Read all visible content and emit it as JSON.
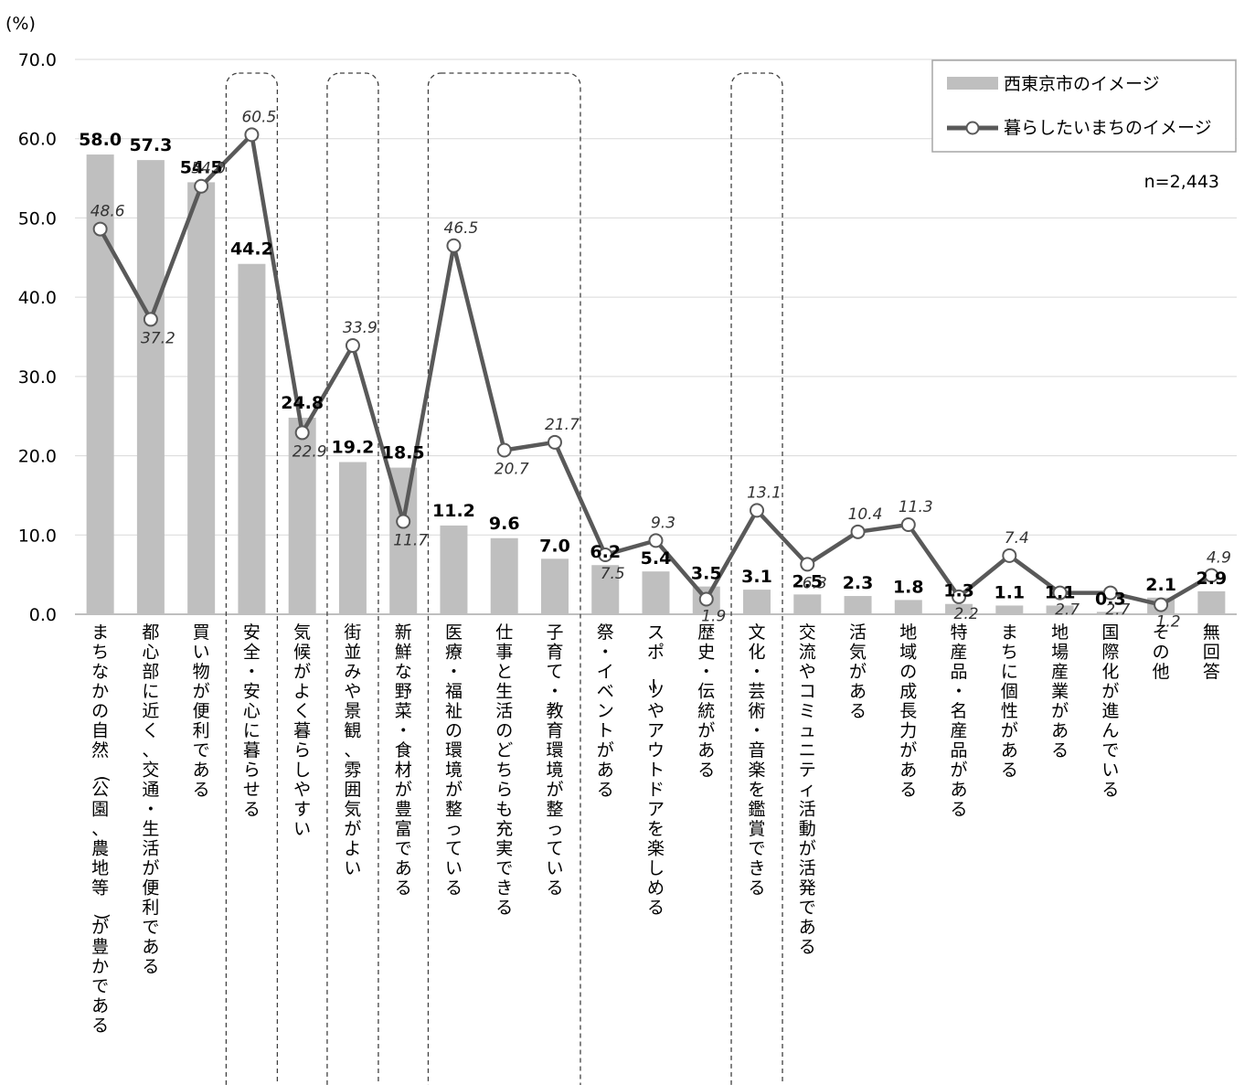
{
  "chart_data": {
    "type": "bar",
    "unit_label": "(%)",
    "n_label": "n=2,443",
    "ylim": [
      0,
      70
    ],
    "yticks": [
      "0.0",
      "10.0",
      "20.0",
      "30.0",
      "40.0",
      "50.0",
      "60.0",
      "70.0"
    ],
    "grid": true,
    "legend_position": "top-right",
    "categories": [
      "まちなかの自然(公園、農地等)が豊かである",
      "都心部に近く、交通・生活が便利である",
      "買い物が便利である",
      "安全・安心に暮らせる",
      "気候がよく暮らしやすい",
      "街並みや景観、雰囲気がよい",
      "新鮮な野菜・食材が豊富である",
      "医療・福祉の環境が整っている",
      "仕事と生活のどちらも充実できる",
      "子育て・教育環境が整っている",
      "祭・イベントがある",
      "スポーツやアウトドアを楽しめる",
      "歴史・伝統がある",
      "文化・芸術・音楽を鑑賞できる",
      "交流やコミュニティ活動が活発である",
      "活気がある",
      "地域の成長力がある",
      "特産品・名産品がある",
      "まちに個性がある",
      "地場産業がある",
      "国際化が進んでいる",
      "その他",
      "無回答"
    ],
    "series": [
      {
        "name": "西東京市のイメージ",
        "kind": "bar",
        "color": "#bfbfbf",
        "values": [
          58.0,
          57.3,
          54.5,
          44.2,
          24.8,
          19.2,
          18.5,
          11.2,
          9.6,
          7.0,
          6.2,
          5.4,
          3.5,
          3.1,
          2.5,
          2.3,
          1.8,
          1.3,
          1.1,
          1.1,
          0.3,
          2.1,
          2.9
        ],
        "labels": [
          "58.0",
          "57.3",
          "54.5",
          "44.2",
          "24.8",
          "19.2",
          "18.5",
          "11.2",
          "9.6",
          "7.0",
          "6.2",
          "5.4",
          "3.5",
          "3.1",
          "2.5",
          "2.3",
          "1.8",
          "1.3",
          "1.1",
          "1.1",
          "0.3",
          "2.1",
          "2.9"
        ]
      },
      {
        "name": "暮らしたいまちのイメージ",
        "kind": "line",
        "color": "#595959",
        "values": [
          48.6,
          37.2,
          54.0,
          60.5,
          22.9,
          33.9,
          11.7,
          46.5,
          20.7,
          21.7,
          7.5,
          9.3,
          1.9,
          13.1,
          6.3,
          10.4,
          11.3,
          2.2,
          7.4,
          2.7,
          2.7,
          1.2,
          4.9
        ],
        "labels": [
          "48.6",
          "37.2",
          "54.0",
          "60.5",
          "22.9",
          "33.9",
          "11.7",
          "46.5",
          "20.7",
          "21.7",
          "7.5",
          "9.3",
          "1.9",
          "13.1",
          "6.3",
          "10.4",
          "11.3",
          "2.2",
          "7.4",
          "2.7",
          "2.7",
          "1.2",
          "4.9"
        ]
      }
    ],
    "highlighted_categories": [
      "安全・安心に暮らせる",
      "街並みや景観、雰囲気がよい",
      "医療・福祉の環境が整っている",
      "仕事と生活のどちらも充実できる",
      "子育て・教育環境が整っている",
      "文化・芸術・音楽を鑑賞できる"
    ]
  }
}
